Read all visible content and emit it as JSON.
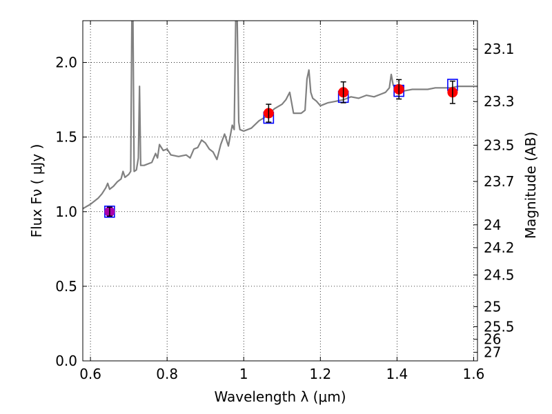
{
  "chart_data": {
    "type": "scatter",
    "title": "",
    "xlabel": "Wavelength  λ (μm)",
    "ylabel": "Flux  Fν  ( μJy )",
    "ylabel_right": "Magnitude (AB)",
    "xlim": [
      0.58,
      1.61
    ],
    "ylim": [
      0.0,
      2.28
    ],
    "grid": true,
    "grid_style": "dotted",
    "x_ticks": [
      {
        "value": 0.6,
        "label": "0.6"
      },
      {
        "value": 0.8,
        "label": "0.8"
      },
      {
        "value": 1.0,
        "label": "1"
      },
      {
        "value": 1.2,
        "label": "1.2"
      },
      {
        "value": 1.4,
        "label": "1.4"
      },
      {
        "value": 1.6,
        "label": "1.6"
      }
    ],
    "y_ticks": [
      {
        "value": 0.0,
        "label": "0.0"
      },
      {
        "value": 0.5,
        "label": "0.5"
      },
      {
        "value": 1.0,
        "label": "1.0"
      },
      {
        "value": 1.5,
        "label": "1.5"
      },
      {
        "value": 2.0,
        "label": "2.0"
      }
    ],
    "right_ticks": [
      {
        "value": 23.1,
        "label": "23.1"
      },
      {
        "value": 23.3,
        "label": "23.3"
      },
      {
        "value": 23.5,
        "label": "23.5"
      },
      {
        "value": 23.7,
        "label": "23.7"
      },
      {
        "value": 24.0,
        "label": "24"
      },
      {
        "value": 24.2,
        "label": "24.2"
      },
      {
        "value": 24.5,
        "label": "24.5"
      },
      {
        "value": 25.0,
        "label": "25"
      },
      {
        "value": 25.5,
        "label": "25.5"
      },
      {
        "value": 26.0,
        "label": "26"
      },
      {
        "value": 27.0,
        "label": "27"
      }
    ],
    "ab_zeropoint_flux_ujy": 3631000000,
    "observed": {
      "marker": "circle",
      "color": "#ff0000",
      "points": [
        {
          "x": 0.65,
          "y": 1.0,
          "err": 0.03
        },
        {
          "x": 1.065,
          "y": 1.66,
          "err": 0.06
        },
        {
          "x": 1.26,
          "y": 1.8,
          "err": 0.07
        },
        {
          "x": 1.405,
          "y": 1.82,
          "err": 0.065
        },
        {
          "x": 1.545,
          "y": 1.8,
          "err": 0.075
        }
      ]
    },
    "model_photometry": {
      "marker": "square-open",
      "color": "#0000ff",
      "points": [
        {
          "x": 0.65,
          "y": 1.0
        },
        {
          "x": 1.065,
          "y": 1.63
        },
        {
          "x": 1.26,
          "y": 1.77
        },
        {
          "x": 1.405,
          "y": 1.81
        },
        {
          "x": 1.545,
          "y": 1.85
        }
      ]
    },
    "model_spectrum": {
      "color": "#808080",
      "points": [
        [
          0.58,
          1.02
        ],
        [
          0.6,
          1.05
        ],
        [
          0.62,
          1.09
        ],
        [
          0.63,
          1.12
        ],
        [
          0.64,
          1.16
        ],
        [
          0.645,
          1.19
        ],
        [
          0.65,
          1.15
        ],
        [
          0.66,
          1.17
        ],
        [
          0.67,
          1.2
        ],
        [
          0.68,
          1.22
        ],
        [
          0.685,
          1.27
        ],
        [
          0.69,
          1.23
        ],
        [
          0.7,
          1.25
        ],
        [
          0.705,
          1.27
        ],
        [
          0.708,
          2.28
        ],
        [
          0.711,
          2.28
        ],
        [
          0.714,
          1.27
        ],
        [
          0.72,
          1.28
        ],
        [
          0.725,
          1.36
        ],
        [
          0.728,
          1.84
        ],
        [
          0.731,
          1.31
        ],
        [
          0.74,
          1.31
        ],
        [
          0.76,
          1.33
        ],
        [
          0.77,
          1.39
        ],
        [
          0.775,
          1.36
        ],
        [
          0.78,
          1.45
        ],
        [
          0.79,
          1.41
        ],
        [
          0.8,
          1.42
        ],
        [
          0.81,
          1.38
        ],
        [
          0.83,
          1.37
        ],
        [
          0.85,
          1.38
        ],
        [
          0.86,
          1.36
        ],
        [
          0.87,
          1.42
        ],
        [
          0.88,
          1.43
        ],
        [
          0.89,
          1.48
        ],
        [
          0.9,
          1.46
        ],
        [
          0.91,
          1.42
        ],
        [
          0.92,
          1.4
        ],
        [
          0.93,
          1.35
        ],
        [
          0.94,
          1.45
        ],
        [
          0.95,
          1.52
        ],
        [
          0.96,
          1.44
        ],
        [
          0.97,
          1.58
        ],
        [
          0.975,
          1.55
        ],
        [
          0.979,
          2.28
        ],
        [
          0.983,
          2.28
        ],
        [
          0.987,
          1.6
        ],
        [
          0.99,
          1.55
        ],
        [
          1.0,
          1.54
        ],
        [
          1.02,
          1.56
        ],
        [
          1.04,
          1.61
        ],
        [
          1.06,
          1.64
        ],
        [
          1.08,
          1.69
        ],
        [
          1.1,
          1.72
        ],
        [
          1.11,
          1.75
        ],
        [
          1.12,
          1.8
        ],
        [
          1.13,
          1.66
        ],
        [
          1.15,
          1.66
        ],
        [
          1.16,
          1.68
        ],
        [
          1.165,
          1.89
        ],
        [
          1.17,
          1.95
        ],
        [
          1.175,
          1.8
        ],
        [
          1.18,
          1.76
        ],
        [
          1.19,
          1.74
        ],
        [
          1.2,
          1.71
        ],
        [
          1.22,
          1.73
        ],
        [
          1.24,
          1.74
        ],
        [
          1.26,
          1.75
        ],
        [
          1.28,
          1.77
        ],
        [
          1.3,
          1.76
        ],
        [
          1.32,
          1.78
        ],
        [
          1.34,
          1.77
        ],
        [
          1.36,
          1.79
        ],
        [
          1.37,
          1.8
        ],
        [
          1.38,
          1.83
        ],
        [
          1.385,
          1.92
        ],
        [
          1.39,
          1.85
        ],
        [
          1.4,
          1.81
        ],
        [
          1.42,
          1.81
        ],
        [
          1.44,
          1.82
        ],
        [
          1.46,
          1.82
        ],
        [
          1.48,
          1.82
        ],
        [
          1.5,
          1.83
        ],
        [
          1.52,
          1.83
        ],
        [
          1.54,
          1.83
        ],
        [
          1.56,
          1.84
        ],
        [
          1.58,
          1.84
        ],
        [
          1.6,
          1.84
        ],
        [
          1.61,
          1.84
        ]
      ]
    }
  }
}
